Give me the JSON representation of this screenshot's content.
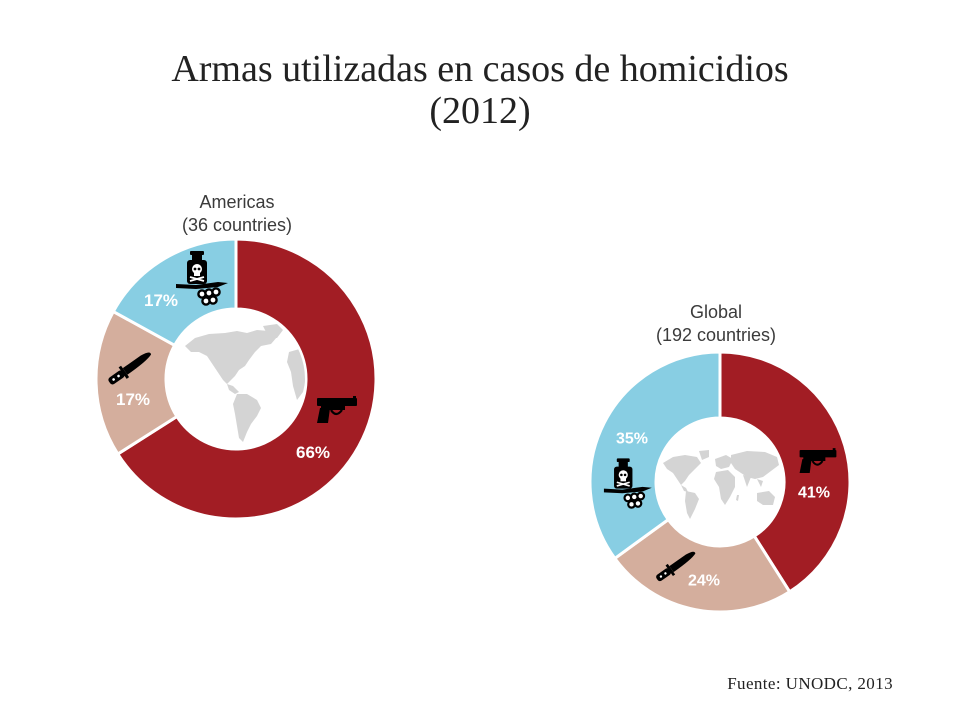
{
  "slide": {
    "title_line1": "Armas utilizadas en casos de homicidios",
    "title_line2": "(2012)",
    "source": "Fuente: UNODC, 2013"
  },
  "colors": {
    "title_text": "#222222",
    "heading_text": "#3b3b3b",
    "slice_label_text": "#ffffff",
    "separator": "#ffffff",
    "map": "#d4d4d4",
    "icon": "#000000"
  },
  "chart_data": [
    {
      "type": "pie",
      "donut": true,
      "start": "top",
      "direction": "clockwise",
      "title": "Americas",
      "subtitle": "(36 countries)",
      "center_icon": "world-map-americas-icon",
      "slices": [
        {
          "value": 66,
          "label": "66%",
          "color": "#a21d24",
          "icon": "pistol-icon"
        },
        {
          "value": 17,
          "label": "17%",
          "color": "#d4ae9d",
          "icon": "knife-icon"
        },
        {
          "value": 17,
          "label": "17%",
          "color": "#88cee3",
          "icon": "poison-bottle-icon"
        }
      ]
    },
    {
      "type": "pie",
      "donut": true,
      "start": "top",
      "direction": "clockwise",
      "title": "Global",
      "subtitle": "(192 countries)",
      "center_icon": "world-map-icon",
      "slices": [
        {
          "value": 41,
          "label": "41%",
          "color": "#a21d24",
          "icon": "pistol-icon"
        },
        {
          "value": 24,
          "label": "24%",
          "color": "#d4ae9d",
          "icon": "knife-icon"
        },
        {
          "value": 35,
          "label": "35%",
          "color": "#88cee3",
          "icon": "poison-bottle-icon"
        }
      ]
    }
  ]
}
